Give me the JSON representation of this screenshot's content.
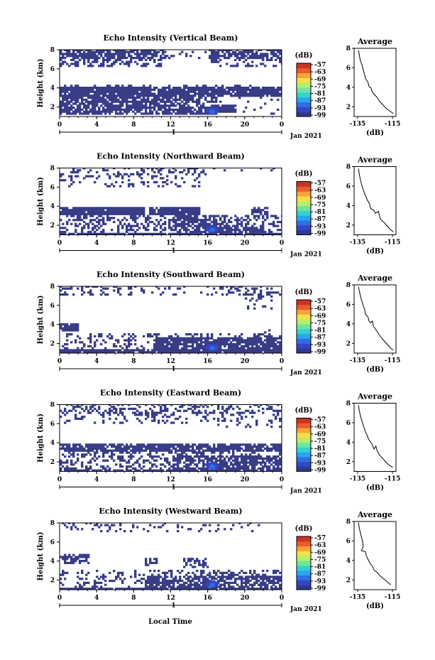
{
  "figure": {
    "x_axis_label": "Local Time",
    "date_label": "Jan 2021",
    "day_label": "1",
    "height_axis_label": "Height (km)",
    "colorbar_unit": "(dB)",
    "average_title": "Average",
    "average_xlabel": "(dB)"
  },
  "colors": {
    "scale": [
      "#2e3a8c",
      "#3446c4",
      "#2f6fe0",
      "#29a5ee",
      "#38cfd2",
      "#6ee5a0",
      "#b6ef6a",
      "#f2e04a",
      "#f6a33a",
      "#ea5a2c",
      "#c83424"
    ],
    "fill": "#383d86"
  },
  "chart_data": [
    {
      "type": "heatmap",
      "title": "Echo Intensity (Vertical Beam)",
      "xticks": [
        "0",
        "4",
        "8",
        "12",
        "16",
        "20",
        "0"
      ],
      "yticks": [
        "2",
        "4",
        "6",
        "8"
      ],
      "xlim": [
        0,
        24
      ],
      "ylim": [
        1,
        8
      ],
      "colorbar_ticks": [
        "-57",
        "-63",
        "-69",
        "-75",
        "-81",
        "-87",
        "-93",
        "-99"
      ],
      "profile": {
        "xticks": [
          "-135",
          "-115"
        ],
        "yticks": [
          "2",
          "4",
          "6",
          "8"
        ],
        "xlim": [
          -137,
          -113
        ],
        "ylim": [
          1,
          8
        ],
        "points": [
          [
            -134.5,
            7.8
          ],
          [
            -134,
            7.3
          ],
          [
            -133.5,
            6.8
          ],
          [
            -132.5,
            6.3
          ],
          [
            -131.8,
            5.8
          ],
          [
            -131,
            5.3
          ],
          [
            -130.5,
            4.9
          ],
          [
            -129,
            4.5
          ],
          [
            -128.5,
            4.1
          ],
          [
            -127.2,
            3.9
          ],
          [
            -126.8,
            3.6
          ],
          [
            -125.6,
            3.3
          ],
          [
            -124,
            3.0
          ],
          [
            -122.5,
            2.6
          ],
          [
            -120.5,
            2.2
          ],
          [
            -118.5,
            1.8
          ],
          [
            -116,
            1.5
          ],
          [
            -114.5,
            1.3
          ]
        ]
      }
    },
    {
      "type": "heatmap",
      "title": "Echo Intensity (Northward Beam)",
      "xticks": [
        "0",
        "4",
        "8",
        "12",
        "16",
        "20",
        "0"
      ],
      "yticks": [
        "2",
        "4",
        "6",
        "8"
      ],
      "xlim": [
        0,
        24
      ],
      "ylim": [
        1,
        8
      ],
      "colorbar_ticks": [
        "-57",
        "-63",
        "-69",
        "-75",
        "-81",
        "-87",
        "-93",
        "-99"
      ],
      "profile": {
        "xticks": [
          "-135",
          "-115"
        ],
        "yticks": [
          "2",
          "4",
          "6",
          "8"
        ],
        "xlim": [
          -137,
          -113
        ],
        "ylim": [
          1,
          8
        ],
        "points": [
          [
            -134.5,
            7.8
          ],
          [
            -134,
            7.2
          ],
          [
            -133.3,
            6.6
          ],
          [
            -132.5,
            6.0
          ],
          [
            -131.5,
            5.5
          ],
          [
            -130.5,
            5.0
          ],
          [
            -129.5,
            4.6
          ],
          [
            -128.2,
            4.2
          ],
          [
            -127.5,
            3.7
          ],
          [
            -125.5,
            3.5
          ],
          [
            -124.8,
            3.2
          ],
          [
            -123,
            3.4
          ],
          [
            -122.5,
            3.0
          ],
          [
            -121.8,
            2.6
          ],
          [
            -119.5,
            2.2
          ],
          [
            -117.5,
            1.8
          ],
          [
            -116,
            1.5
          ],
          [
            -114.5,
            1.3
          ]
        ]
      }
    },
    {
      "type": "heatmap",
      "title": "Echo Intensity (Southward Beam)",
      "xticks": [
        "0",
        "4",
        "8",
        "12",
        "16",
        "20",
        "0"
      ],
      "yticks": [
        "2",
        "4",
        "6",
        "8"
      ],
      "xlim": [
        0,
        24
      ],
      "ylim": [
        1,
        8
      ],
      "colorbar_ticks": [
        "-57",
        "-63",
        "-69",
        "-75",
        "-81",
        "-87",
        "-93",
        "-99"
      ],
      "profile": {
        "xticks": [
          "-135",
          "-115"
        ],
        "yticks": [
          "2",
          "4",
          "6",
          "8"
        ],
        "xlim": [
          -137,
          -113
        ],
        "ylim": [
          1,
          8
        ],
        "points": [
          [
            -134.5,
            7.8
          ],
          [
            -133.8,
            7.2
          ],
          [
            -133,
            6.6
          ],
          [
            -132,
            6.0
          ],
          [
            -131,
            5.5
          ],
          [
            -130.5,
            5.0
          ],
          [
            -129,
            4.7
          ],
          [
            -128.5,
            4.3
          ],
          [
            -127.5,
            4.1
          ],
          [
            -126.5,
            4.3
          ],
          [
            -126,
            3.8
          ],
          [
            -124.5,
            3.4
          ],
          [
            -123,
            3.0
          ],
          [
            -121.5,
            2.6
          ],
          [
            -119.5,
            2.2
          ],
          [
            -117.5,
            1.8
          ],
          [
            -116,
            1.5
          ],
          [
            -114.5,
            1.3
          ]
        ]
      }
    },
    {
      "type": "heatmap",
      "title": "Echo Intensity (Eastward Beam)",
      "xticks": [
        "0",
        "4",
        "8",
        "12",
        "16",
        "20",
        "0"
      ],
      "yticks": [
        "2",
        "4",
        "6",
        "8"
      ],
      "xlim": [
        0,
        24
      ],
      "ylim": [
        1,
        8
      ],
      "colorbar_ticks": [
        "-57",
        "-63",
        "-69",
        "-75",
        "-81",
        "-87",
        "-93",
        "-99"
      ],
      "profile": {
        "xticks": [
          "-135",
          "-115"
        ],
        "yticks": [
          "2",
          "4",
          "6",
          "8"
        ],
        "xlim": [
          -137,
          -113
        ],
        "ylim": [
          1,
          8
        ],
        "points": [
          [
            -134.5,
            7.8
          ],
          [
            -134,
            7.2
          ],
          [
            -133.2,
            6.6
          ],
          [
            -132.4,
            6.1
          ],
          [
            -131.5,
            5.6
          ],
          [
            -130.6,
            5.1
          ],
          [
            -129.5,
            4.7
          ],
          [
            -128.7,
            4.3
          ],
          [
            -127.5,
            4.0
          ],
          [
            -126.2,
            3.6
          ],
          [
            -125.6,
            3.3
          ],
          [
            -124.5,
            3.6
          ],
          [
            -123.8,
            3.1
          ],
          [
            -122.5,
            2.7
          ],
          [
            -120.5,
            2.3
          ],
          [
            -118.5,
            1.9
          ],
          [
            -116.5,
            1.6
          ],
          [
            -114.8,
            1.4
          ]
        ]
      }
    },
    {
      "type": "heatmap",
      "title": "Echo Intensity (Westward Beam)",
      "xticks": [
        "0",
        "4",
        "8",
        "12",
        "16",
        "20",
        "0"
      ],
      "yticks": [
        "2",
        "4",
        "6",
        "8"
      ],
      "xlim": [
        0,
        24
      ],
      "ylim": [
        1,
        8
      ],
      "colorbar_ticks": [
        "-57",
        "-63",
        "-69",
        "-75",
        "-81",
        "-87",
        "-93",
        "-99"
      ],
      "profile": {
        "xticks": [
          "-135",
          "-115"
        ],
        "yticks": [
          "2",
          "4",
          "6",
          "8"
        ],
        "xlim": [
          -137,
          -113
        ],
        "ylim": [
          1,
          8
        ],
        "points": [
          [
            -134.5,
            7.9
          ],
          [
            -134,
            7.3
          ],
          [
            -133.2,
            6.7
          ],
          [
            -132.5,
            6.2
          ],
          [
            -132,
            5.8
          ],
          [
            -131.8,
            5.4
          ],
          [
            -132.8,
            5.0
          ],
          [
            -130.5,
            4.9
          ],
          [
            -130,
            4.5
          ],
          [
            -129,
            4.1
          ],
          [
            -127.8,
            3.7
          ],
          [
            -126.5,
            3.4
          ],
          [
            -125.5,
            3.0
          ],
          [
            -124,
            2.8
          ],
          [
            -122,
            2.4
          ],
          [
            -120,
            2.1
          ],
          [
            -118,
            1.8
          ],
          [
            -116,
            1.5
          ]
        ]
      }
    }
  ]
}
